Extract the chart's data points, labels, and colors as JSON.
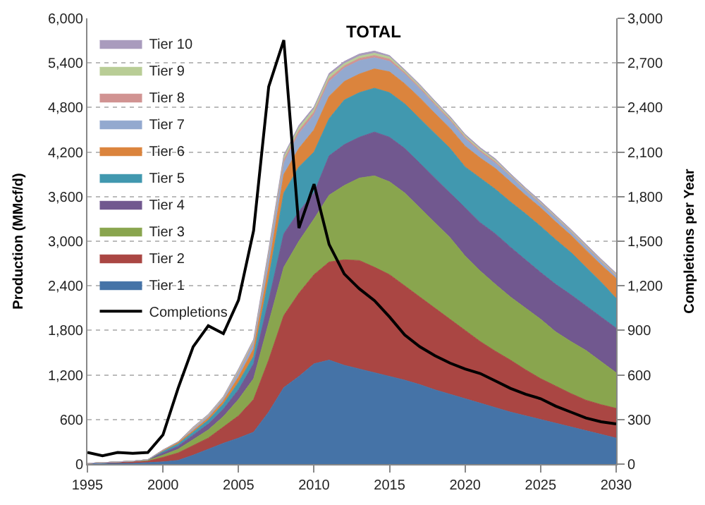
{
  "chart_data": {
    "type": "area",
    "title": "TOTAL",
    "ylabel": "Production (MMcf/d)",
    "y2label": "Completions per Year",
    "stacked": true,
    "grid": "y",
    "legend": "top left",
    "x": [
      1995,
      1996,
      1997,
      1998,
      1999,
      2000,
      2001,
      2002,
      2003,
      2004,
      2005,
      2006,
      2007,
      2008,
      2009,
      2010,
      2011,
      2012,
      2013,
      2014,
      2015,
      2016,
      2017,
      2018,
      2019,
      2020,
      2021,
      2022,
      2023,
      2024,
      2025,
      2026,
      2027,
      2028,
      2029,
      2030
    ],
    "xlim": [
      1995,
      2030
    ],
    "xticks": [
      1995,
      2000,
      2005,
      2010,
      2015,
      2020,
      2025,
      2030
    ],
    "ylim": [
      0,
      6000
    ],
    "yticks": [
      {
        "value": 0,
        "label": "0"
      },
      {
        "value": 600,
        "label": "600"
      },
      {
        "value": 1200,
        "label": "1,200"
      },
      {
        "value": 1800,
        "label": "1,800"
      },
      {
        "value": 2400,
        "label": "2,400"
      },
      {
        "value": 3000,
        "label": "3,000"
      },
      {
        "value": 3600,
        "label": "3,600"
      },
      {
        "value": 4200,
        "label": "4,200"
      },
      {
        "value": 4800,
        "label": "4,800"
      },
      {
        "value": 5400,
        "label": "5,400"
      },
      {
        "value": 6000,
        "label": "6,000"
      }
    ],
    "y2lim": [
      0,
      3000
    ],
    "y2ticks": [
      {
        "value": 0,
        "label": "0"
      },
      {
        "value": 300,
        "label": "300"
      },
      {
        "value": 600,
        "label": "600"
      },
      {
        "value": 900,
        "label": "900"
      },
      {
        "value": 1200,
        "label": "1,200"
      },
      {
        "value": 1500,
        "label": "1,500"
      },
      {
        "value": 1800,
        "label": "1,800"
      },
      {
        "value": 2100,
        "label": "2,100"
      },
      {
        "value": 2400,
        "label": "2,400"
      },
      {
        "value": 2700,
        "label": "2,700"
      },
      {
        "value": 3000,
        "label": "3,000"
      }
    ],
    "series": [
      {
        "name": "Tier 1",
        "color": "#4573a7",
        "values": [
          0,
          10,
          10,
          10,
          20,
          30,
          50,
          120,
          200,
          280,
          350,
          430,
          700,
          1030,
          1180,
          1350,
          1400,
          1330,
          1280,
          1230,
          1180,
          1130,
          1070,
          1000,
          940,
          880,
          820,
          760,
          700,
          650,
          600,
          550,
          500,
          450,
          400,
          350
        ]
      },
      {
        "name": "Tier 2",
        "color": "#aa4643",
        "values": [
          10,
          10,
          10,
          20,
          20,
          60,
          100,
          130,
          150,
          220,
          300,
          440,
          700,
          970,
          1120,
          1200,
          1320,
          1420,
          1460,
          1420,
          1370,
          1270,
          1180,
          1100,
          1010,
          920,
          830,
          760,
          700,
          620,
          550,
          500,
          450,
          410,
          400,
          400
        ]
      },
      {
        "name": "Tier 3",
        "color": "#89a54e",
        "values": [
          0,
          0,
          10,
          10,
          10,
          30,
          50,
          80,
          110,
          140,
          220,
          280,
          500,
          650,
          700,
          750,
          900,
          1000,
          1110,
          1230,
          1250,
          1250,
          1200,
          1150,
          1100,
          1000,
          950,
          900,
          850,
          830,
          800,
          730,
          700,
          670,
          580,
          480
        ]
      },
      {
        "name": "Tier 4",
        "color": "#71588f",
        "values": [
          0,
          0,
          0,
          0,
          10,
          30,
          40,
          60,
          80,
          100,
          130,
          200,
          300,
          450,
          400,
          350,
          530,
          550,
          550,
          590,
          600,
          600,
          600,
          600,
          600,
          650,
          650,
          680,
          670,
          650,
          630,
          640,
          630,
          600,
          600,
          600
        ]
      },
      {
        "name": "Tier 5",
        "color": "#4198af",
        "values": [
          0,
          0,
          0,
          0,
          0,
          20,
          30,
          40,
          50,
          70,
          100,
          100,
          300,
          550,
          600,
          550,
          500,
          600,
          600,
          590,
          600,
          600,
          600,
          600,
          600,
          550,
          600,
          600,
          610,
          620,
          620,
          600,
          570,
          520,
          470,
          400
        ]
      },
      {
        "name": "Tier 6",
        "color": "#db843d",
        "values": [
          0,
          0,
          0,
          0,
          0,
          10,
          20,
          20,
          30,
          40,
          70,
          100,
          150,
          250,
          250,
          300,
          300,
          250,
          250,
          260,
          280,
          270,
          280,
          270,
          270,
          280,
          270,
          280,
          270,
          250,
          250,
          240,
          230,
          230,
          230,
          270
        ]
      },
      {
        "name": "Tier 7",
        "color": "#93a9cf",
        "values": [
          0,
          0,
          0,
          0,
          0,
          10,
          10,
          20,
          20,
          30,
          50,
          70,
          150,
          150,
          200,
          200,
          200,
          180,
          180,
          150,
          140,
          130,
          120,
          110,
          100,
          100,
          80,
          70,
          70,
          60,
          50,
          50,
          40,
          40,
          40,
          30
        ]
      },
      {
        "name": "Tier 8",
        "color": "#d19392",
        "values": [
          0,
          0,
          0,
          0,
          0,
          0,
          0,
          10,
          10,
          10,
          20,
          20,
          30,
          40,
          40,
          40,
          40,
          30,
          30,
          30,
          30,
          20,
          20,
          20,
          20,
          20,
          20,
          20,
          10,
          10,
          10,
          10,
          10,
          10,
          10,
          10
        ]
      },
      {
        "name": "Tier 9",
        "color": "#b9cd96",
        "values": [
          0,
          0,
          0,
          0,
          0,
          0,
          0,
          10,
          10,
          10,
          20,
          20,
          30,
          40,
          40,
          40,
          40,
          30,
          30,
          30,
          30,
          20,
          20,
          20,
          20,
          20,
          20,
          20,
          10,
          10,
          10,
          10,
          10,
          10,
          10,
          10
        ]
      },
      {
        "name": "Tier 10",
        "color": "#a99bbd",
        "values": [
          0,
          0,
          0,
          0,
          0,
          0,
          0,
          10,
          10,
          10,
          20,
          20,
          30,
          30,
          30,
          30,
          30,
          30,
          30,
          30,
          20,
          20,
          20,
          20,
          20,
          20,
          20,
          20,
          20,
          20,
          20,
          20,
          20,
          20,
          20,
          20
        ]
      },
      {
        "name": "Completions",
        "type": "line",
        "axis": "y2",
        "color": "#000000",
        "values": [
          78,
          56,
          78,
          72,
          78,
          197,
          510,
          790,
          931,
          878,
          1103,
          1572,
          2540,
          2853,
          1588,
          1884,
          1478,
          1280,
          1180,
          1100,
          990,
          870,
          790,
          730,
          680,
          640,
          610,
          560,
          510,
          470,
          440,
          390,
          350,
          310,
          285,
          270
        ]
      }
    ]
  }
}
